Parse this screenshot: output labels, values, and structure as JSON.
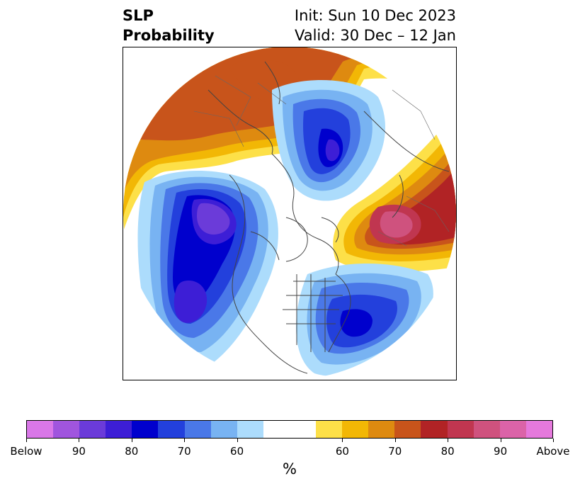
{
  "title": {
    "left_line1": "SLP",
    "left_line2": "Probability",
    "right_line1": "Init: Sun 10 Dec 2023",
    "right_line2": "Valid: 30 Dec – 12 Jan"
  },
  "colorbar": {
    "colors": [
      "#d977e8",
      "#a055de",
      "#6b3bd9",
      "#3d1ed6",
      "#0000cd",
      "#2340dc",
      "#4a78e8",
      "#78b3f2",
      "#acdcfc",
      "#ffffff",
      "#ffffff",
      "#fde048",
      "#f2b705",
      "#de8a10",
      "#c8541b",
      "#b12325",
      "#c03650",
      "#cf527e",
      "#db63a8",
      "#e579dc"
    ],
    "ticks": [
      "Below",
      "90",
      "80",
      "70",
      "60",
      "60",
      "70",
      "80",
      "90",
      "Above"
    ],
    "unit": "%"
  }
}
